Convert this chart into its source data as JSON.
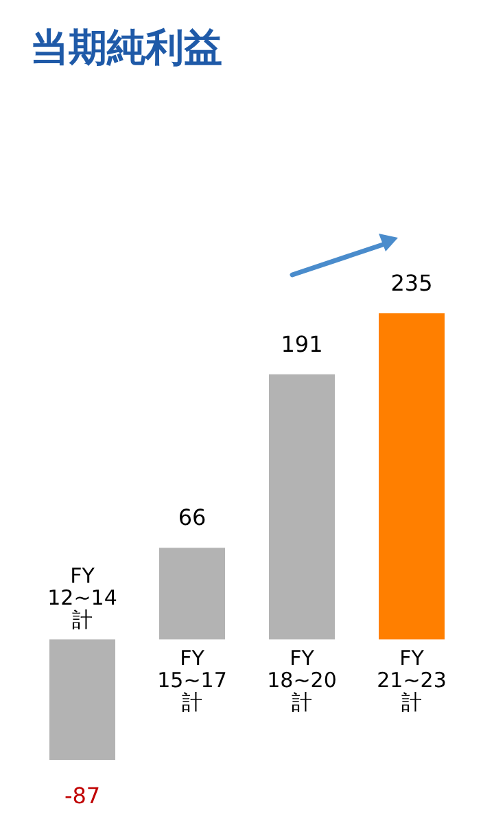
{
  "chart_data": {
    "type": "bar",
    "title": "当期純利益",
    "categories": [
      "FY\n12~14\n計",
      "FY\n15~17\n計",
      "FY\n18~20\n計",
      "FY\n21~23\n計"
    ],
    "values": [
      -87,
      66,
      191,
      235
    ],
    "colors": [
      "#b3b3b3",
      "#b3b3b3",
      "#b3b3b3",
      "#ff7f00"
    ],
    "data_labels": true
  }
}
